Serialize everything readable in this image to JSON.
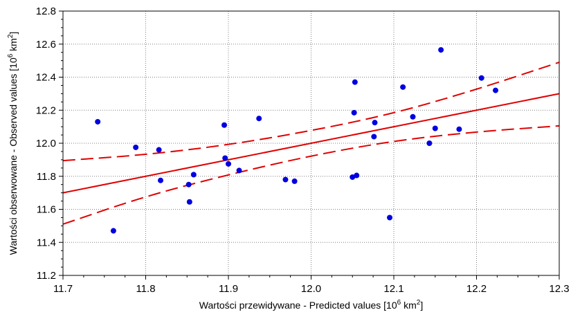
{
  "chart_data": {
    "type": "scatter",
    "title": "",
    "xlabel": {
      "prefix": "Wartości przewidywane - Predicted values [10",
      "exponent": "6",
      "unit": " km",
      "unit_exponent": "2",
      "suffix": "]"
    },
    "ylabel": {
      "prefix": "Wartości obserwowane - Observed values [10",
      "exponent": "6",
      "unit": " km",
      "unit_exponent": "2",
      "suffix": "]"
    },
    "xlim": [
      11.7,
      12.3
    ],
    "ylim": [
      11.2,
      12.8
    ],
    "xticks": [
      "11.7",
      "11.8",
      "11.9",
      "12.0",
      "12.1",
      "12.2",
      "12.3"
    ],
    "yticks": [
      "11.2",
      "11.4",
      "11.6",
      "11.8",
      "12.0",
      "12.2",
      "12.4",
      "12.6",
      "12.8"
    ],
    "grid": true,
    "grid_style": "dotted",
    "points": [
      {
        "x": 11.742,
        "y": 12.13
      },
      {
        "x": 11.761,
        "y": 11.47
      },
      {
        "x": 11.788,
        "y": 11.975
      },
      {
        "x": 11.816,
        "y": 11.96
      },
      {
        "x": 11.818,
        "y": 11.775
      },
      {
        "x": 11.852,
        "y": 11.75
      },
      {
        "x": 11.853,
        "y": 11.645
      },
      {
        "x": 11.858,
        "y": 11.81
      },
      {
        "x": 11.895,
        "y": 12.11
      },
      {
        "x": 11.896,
        "y": 11.91
      },
      {
        "x": 11.9,
        "y": 11.875
      },
      {
        "x": 11.913,
        "y": 11.835
      },
      {
        "x": 11.937,
        "y": 12.15
      },
      {
        "x": 11.969,
        "y": 11.78
      },
      {
        "x": 11.98,
        "y": 11.77
      },
      {
        "x": 12.05,
        "y": 11.795
      },
      {
        "x": 12.052,
        "y": 12.185
      },
      {
        "x": 12.053,
        "y": 12.37
      },
      {
        "x": 12.055,
        "y": 11.805
      },
      {
        "x": 12.076,
        "y": 12.04
      },
      {
        "x": 12.077,
        "y": 12.125
      },
      {
        "x": 12.095,
        "y": 11.55
      },
      {
        "x": 12.111,
        "y": 12.34
      },
      {
        "x": 12.123,
        "y": 12.16
      },
      {
        "x": 12.143,
        "y": 12.0
      },
      {
        "x": 12.15,
        "y": 12.09
      },
      {
        "x": 12.157,
        "y": 12.565
      },
      {
        "x": 12.179,
        "y": 12.085
      },
      {
        "x": 12.206,
        "y": 12.395
      },
      {
        "x": 12.223,
        "y": 12.32
      }
    ],
    "fit_line": {
      "x": [
        11.7,
        12.3
      ],
      "y": [
        11.7,
        12.3
      ]
    },
    "confidence_band": {
      "x": [
        11.7,
        11.8,
        11.9,
        12.0,
        12.1,
        12.2,
        12.3
      ],
      "upper": [
        11.895,
        11.93,
        11.99,
        12.075,
        12.18,
        12.325,
        12.49
      ],
      "lower": [
        11.51,
        11.68,
        11.81,
        11.925,
        12.015,
        12.07,
        12.105
      ]
    },
    "colors": {
      "points": "#0000e0",
      "fit_line": "#e00000",
      "grid": "#7f7f7f",
      "axis": "#000000"
    }
  }
}
